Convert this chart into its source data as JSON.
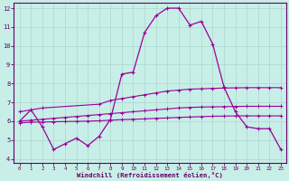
{
  "xlabel": "Windchill (Refroidissement éolien,°C)",
  "background_color": "#c8eee8",
  "grid_color": "#aad8cc",
  "line_color": "#990099",
  "xlim": [
    -0.5,
    23.5
  ],
  "ylim": [
    3.8,
    12.3
  ],
  "xticks": [
    0,
    1,
    2,
    3,
    4,
    5,
    6,
    7,
    8,
    9,
    10,
    11,
    12,
    13,
    14,
    15,
    16,
    17,
    18,
    19,
    20,
    21,
    22,
    23
  ],
  "yticks": [
    4,
    5,
    6,
    7,
    8,
    9,
    10,
    11,
    12
  ],
  "line1_x": [
    0,
    1,
    2,
    3,
    4,
    5,
    6,
    7,
    8,
    9,
    10,
    11,
    12,
    13,
    14,
    15,
    16,
    17,
    18,
    19,
    20,
    21,
    22,
    23
  ],
  "line1_y": [
    6.0,
    6.6,
    5.7,
    4.5,
    4.8,
    5.1,
    4.7,
    5.2,
    6.1,
    8.5,
    8.6,
    10.7,
    11.6,
    12.0,
    12.0,
    11.1,
    11.3,
    10.1,
    7.8,
    6.5,
    5.7,
    5.6,
    5.6,
    4.5
  ],
  "line2_x": [
    0,
    2,
    7,
    8,
    9,
    10,
    11,
    12,
    13,
    14,
    15,
    16,
    17,
    18,
    19,
    20,
    21,
    22,
    23
  ],
  "line2_y": [
    6.5,
    6.7,
    6.9,
    7.1,
    7.2,
    7.3,
    7.4,
    7.5,
    7.6,
    7.65,
    7.7,
    7.72,
    7.74,
    7.76,
    7.77,
    7.78,
    7.78,
    7.78,
    7.78
  ],
  "line3_x": [
    0,
    1,
    2,
    3,
    4,
    5,
    6,
    7,
    8,
    9,
    10,
    11,
    12,
    13,
    14,
    15,
    16,
    17,
    18,
    19,
    20,
    21,
    22,
    23
  ],
  "line3_y": [
    6.0,
    6.05,
    6.1,
    6.15,
    6.2,
    6.25,
    6.3,
    6.35,
    6.4,
    6.45,
    6.5,
    6.55,
    6.6,
    6.65,
    6.7,
    6.73,
    6.75,
    6.76,
    6.77,
    6.78,
    6.79,
    6.79,
    6.79,
    6.79
  ],
  "line4_x": [
    0,
    1,
    2,
    3,
    4,
    5,
    6,
    7,
    8,
    9,
    10,
    11,
    12,
    13,
    14,
    15,
    16,
    17,
    18,
    19,
    20,
    21,
    22,
    23
  ],
  "line4_y": [
    5.9,
    5.95,
    5.95,
    5.97,
    5.98,
    5.99,
    6.0,
    6.02,
    6.05,
    6.08,
    6.1,
    6.12,
    6.15,
    6.17,
    6.2,
    6.22,
    6.24,
    6.26,
    6.27,
    6.28,
    6.28,
    6.28,
    6.28,
    6.28
  ]
}
